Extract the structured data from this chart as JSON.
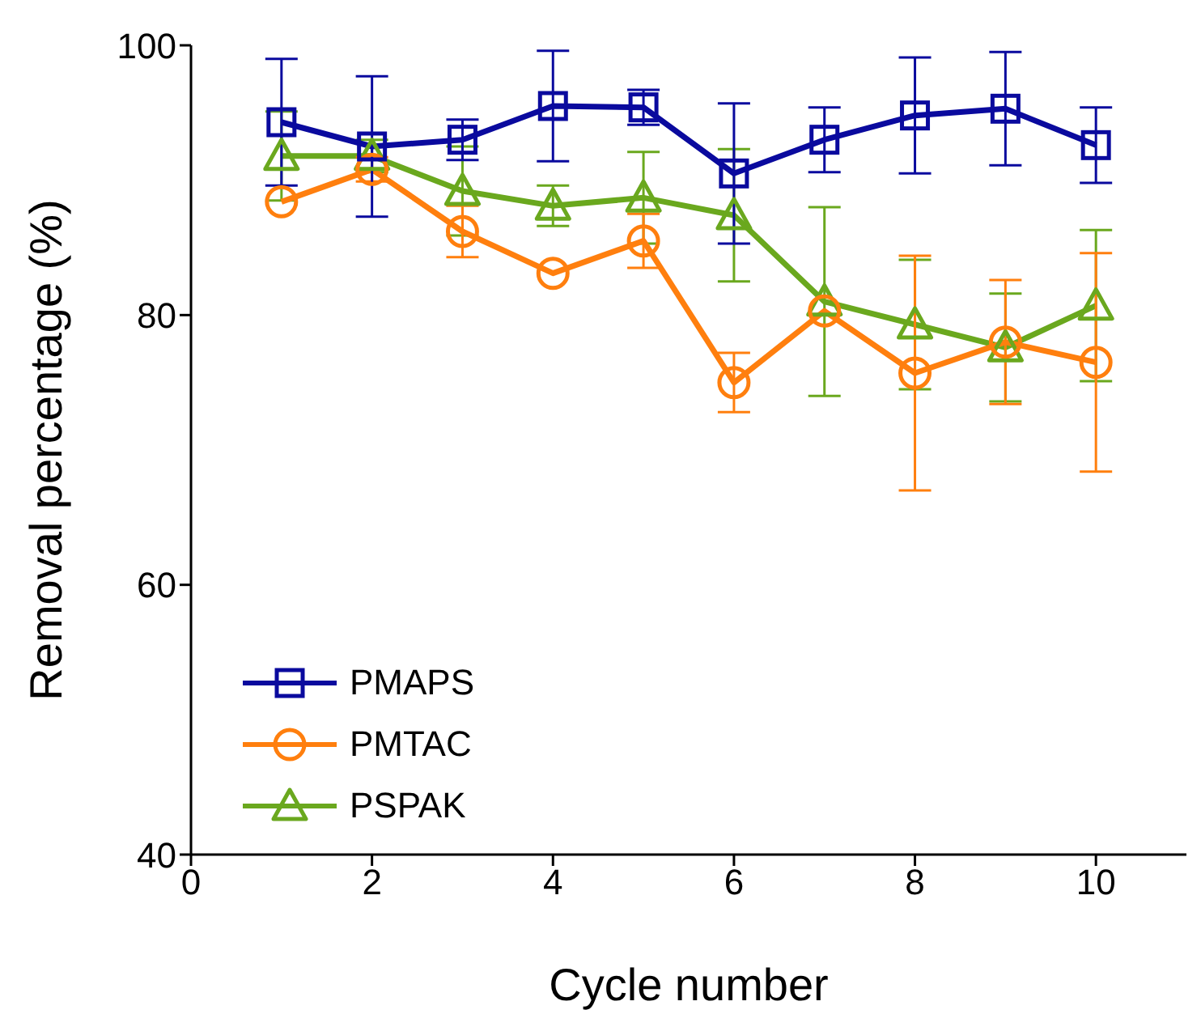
{
  "chart_data": {
    "type": "line",
    "xlabel": "Cycle number",
    "ylabel": "Removal percentage (%)",
    "x": [
      1,
      2,
      3,
      4,
      5,
      6,
      7,
      8,
      9,
      10
    ],
    "xlim": [
      0,
      11
    ],
    "xticks": [
      0,
      2,
      4,
      6,
      8,
      10
    ],
    "ylim": [
      40,
      100
    ],
    "yticks": [
      40,
      60,
      80,
      100
    ],
    "grid": false,
    "legend": "bottom left",
    "line_style": "solid",
    "series": [
      {
        "name": "PMAPS",
        "color": "#0a0a9e",
        "marker": "square",
        "values": [
          94.3,
          92.5,
          93.0,
          95.5,
          95.4,
          90.5,
          93.0,
          94.8,
          95.3,
          92.6
        ],
        "errors": [
          4.7,
          5.2,
          1.5,
          4.1,
          1.3,
          5.2,
          2.4,
          4.3,
          4.2,
          2.8
        ]
      },
      {
        "name": "PMTAC",
        "color": "#ff7f0e",
        "marker": "circle",
        "values": [
          88.4,
          90.8,
          86.2,
          83.1,
          85.5,
          75.0,
          80.3,
          75.7,
          78.0,
          76.5
        ],
        "errors": [
          null,
          0.9,
          1.9,
          null,
          2.0,
          2.2,
          null,
          8.7,
          4.6,
          8.1
        ]
      },
      {
        "name": "PSPAK",
        "color": "#6aa81e",
        "marker": "triangle",
        "values": [
          91.8,
          91.8,
          89.2,
          88.1,
          88.7,
          87.4,
          81.0,
          79.3,
          77.6,
          80.7
        ],
        "errors": [
          3.3,
          1.2,
          3.3,
          1.5,
          3.4,
          4.9,
          7.0,
          4.8,
          4.0,
          5.6
        ]
      }
    ]
  }
}
